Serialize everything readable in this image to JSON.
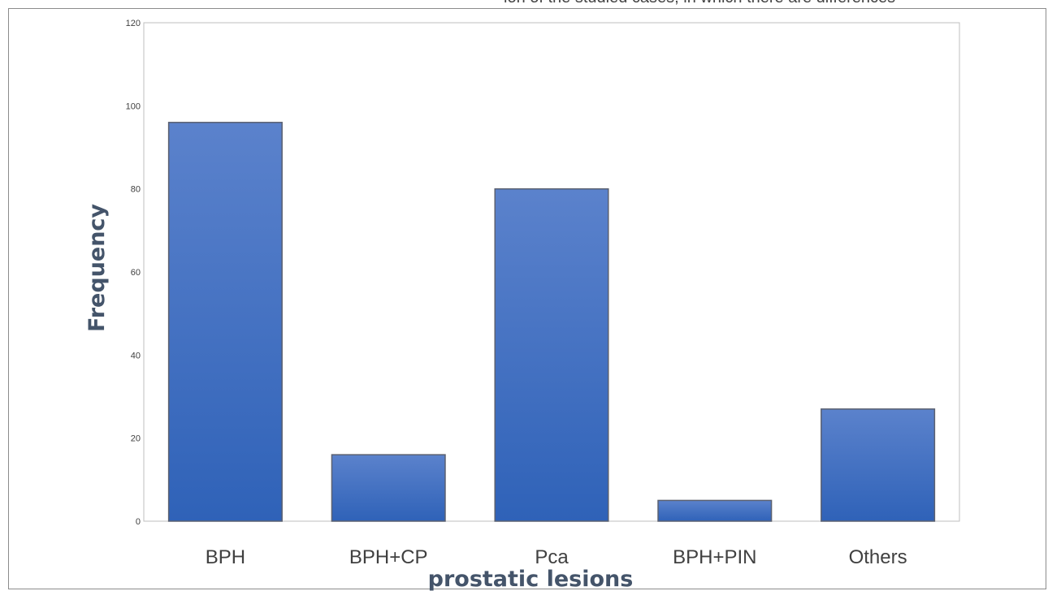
{
  "top_caption": "ion of the studied cases, in which there are differences",
  "chart_data": {
    "type": "bar",
    "title": "",
    "xlabel": "prostatic lesions",
    "ylabel": "Frequency",
    "categories": [
      "BPH",
      "BPH+CP",
      "Pca",
      "BPH+PIN",
      "Others"
    ],
    "values": [
      96,
      16,
      80,
      5,
      27
    ],
    "ylim": [
      0,
      120
    ],
    "yticks": [
      0,
      20,
      40,
      60,
      80,
      100,
      120
    ],
    "grid": false,
    "legend": "none",
    "bar_color_top": "#5b82cc",
    "bar_color_bottom": "#2f62b8",
    "bar_stroke": "#5a6070"
  }
}
